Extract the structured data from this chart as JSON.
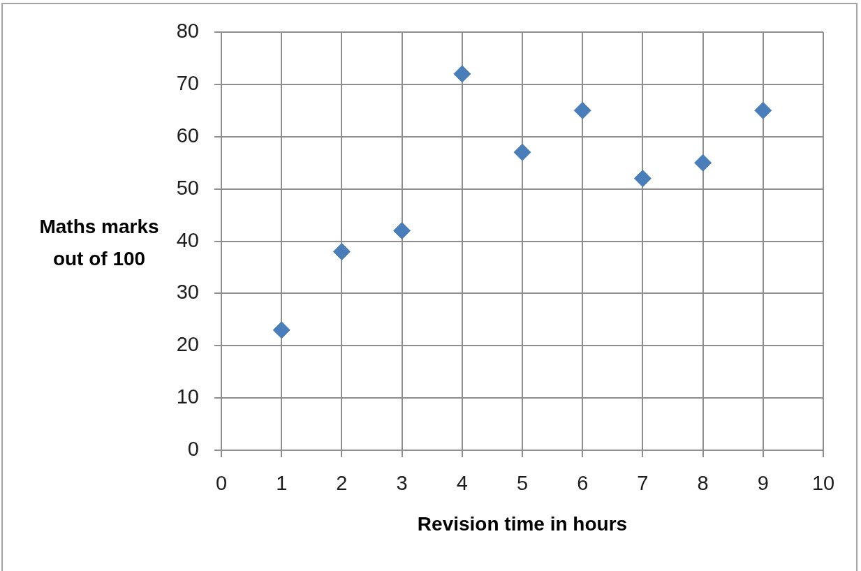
{
  "chart_data": {
    "type": "scatter",
    "xlabel": "Revision time in hours",
    "ylabel": "Maths marks out of 100",
    "x": [
      1,
      2,
      3,
      4,
      5,
      6,
      7,
      8,
      9
    ],
    "values": [
      23,
      38,
      42,
      72,
      57,
      65,
      52,
      55,
      65
    ],
    "color": "#4a7ebb",
    "marker": "diamond",
    "xlim": [
      0,
      10
    ],
    "xticks": [
      0,
      1,
      2,
      3,
      4,
      5,
      6,
      7,
      8,
      9,
      10
    ],
    "ylim": [
      0,
      80
    ],
    "yticks": [
      0,
      10,
      20,
      30,
      40,
      50,
      60,
      70,
      80
    ],
    "grid": true
  }
}
